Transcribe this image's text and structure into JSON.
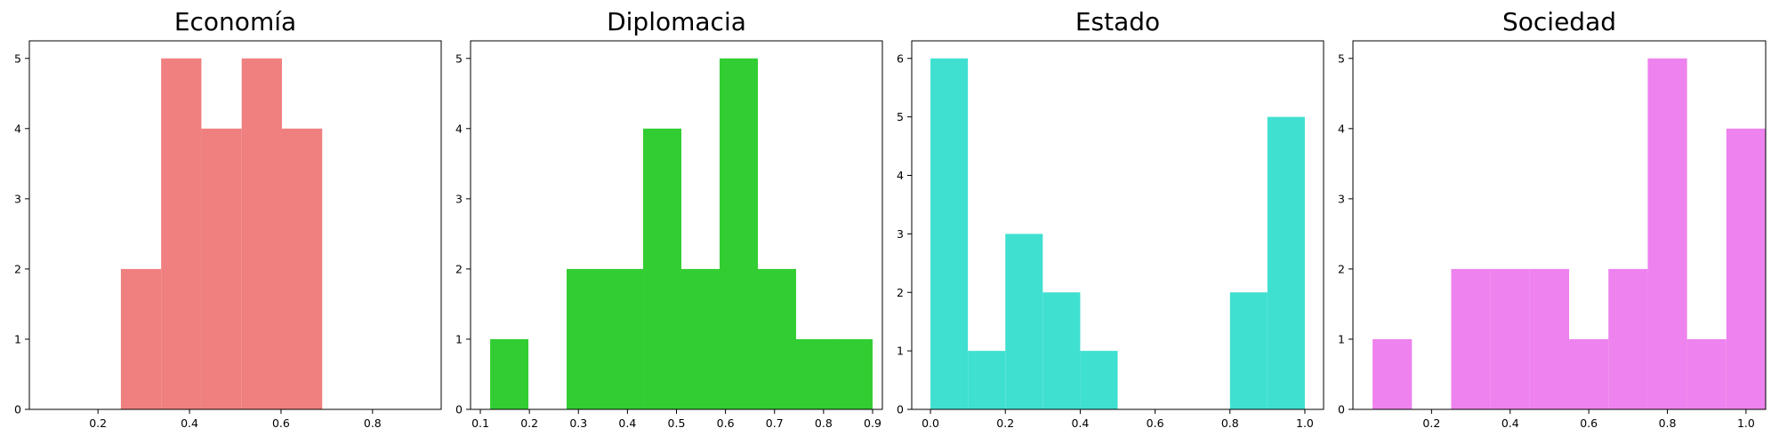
{
  "chart_data": [
    {
      "type": "histogram",
      "title": "Economía",
      "color": "#F08080",
      "xlim": [
        0.05,
        0.95
      ],
      "ylim": [
        0,
        5.25
      ],
      "xticks": [
        0.2,
        0.4,
        0.6,
        0.8
      ],
      "xtick_labels": [
        "0.2",
        "0.4",
        "0.6",
        "0.8"
      ],
      "yticks": [
        0,
        1,
        2,
        3,
        4,
        5
      ],
      "bins": [
        {
          "x0": 0.25,
          "x1": 0.338,
          "count": 2
        },
        {
          "x0": 0.338,
          "x1": 0.426,
          "count": 5
        },
        {
          "x0": 0.426,
          "x1": 0.514,
          "count": 4
        },
        {
          "x0": 0.514,
          "x1": 0.602,
          "count": 5
        },
        {
          "x0": 0.602,
          "x1": 0.69,
          "count": 4
        }
      ]
    },
    {
      "type": "histogram",
      "title": "Diplomacia",
      "color": "#32CD32",
      "xlim": [
        0.08,
        0.92
      ],
      "ylim": [
        0,
        5.25
      ],
      "xticks": [
        0.1,
        0.2,
        0.3,
        0.4,
        0.5,
        0.6,
        0.7,
        0.8,
        0.9
      ],
      "xtick_labels": [
        "0.1",
        "0.2",
        "0.3",
        "0.4",
        "0.5",
        "0.6",
        "0.7",
        "0.8",
        "0.9"
      ],
      "yticks": [
        0,
        1,
        2,
        3,
        4,
        5
      ],
      "bins": [
        {
          "x0": 0.12,
          "x1": 0.198,
          "count": 1
        },
        {
          "x0": 0.198,
          "x1": 0.276,
          "count": 0
        },
        {
          "x0": 0.276,
          "x1": 0.354,
          "count": 2
        },
        {
          "x0": 0.354,
          "x1": 0.432,
          "count": 2
        },
        {
          "x0": 0.432,
          "x1": 0.51,
          "count": 4
        },
        {
          "x0": 0.51,
          "x1": 0.588,
          "count": 2
        },
        {
          "x0": 0.588,
          "x1": 0.666,
          "count": 5
        },
        {
          "x0": 0.666,
          "x1": 0.744,
          "count": 2
        },
        {
          "x0": 0.744,
          "x1": 0.822,
          "count": 1
        },
        {
          "x0": 0.822,
          "x1": 0.9,
          "count": 1
        }
      ]
    },
    {
      "type": "histogram",
      "title": "Estado",
      "color": "#40E0D0",
      "xlim": [
        -0.05,
        1.05
      ],
      "ylim": [
        0,
        6.3
      ],
      "xticks": [
        0.0,
        0.2,
        0.4,
        0.6,
        0.8,
        1.0
      ],
      "xtick_labels": [
        "0.0",
        "0.2",
        "0.4",
        "0.6",
        "0.8",
        "1.0"
      ],
      "yticks": [
        0,
        1,
        2,
        3,
        4,
        5,
        6
      ],
      "bins": [
        {
          "x0": 0.0,
          "x1": 0.1,
          "count": 6
        },
        {
          "x0": 0.1,
          "x1": 0.2,
          "count": 1
        },
        {
          "x0": 0.2,
          "x1": 0.3,
          "count": 3
        },
        {
          "x0": 0.3,
          "x1": 0.4,
          "count": 2
        },
        {
          "x0": 0.4,
          "x1": 0.5,
          "count": 1
        },
        {
          "x0": 0.5,
          "x1": 0.6,
          "count": 0
        },
        {
          "x0": 0.6,
          "x1": 0.7,
          "count": 0
        },
        {
          "x0": 0.7,
          "x1": 0.8,
          "count": 0
        },
        {
          "x0": 0.8,
          "x1": 0.9,
          "count": 2
        },
        {
          "x0": 0.9,
          "x1": 1.0,
          "count": 5
        }
      ]
    },
    {
      "type": "histogram",
      "title": "Sociedad",
      "color": "#EE82EE",
      "xlim": [
        0.0,
        1.05
      ],
      "ylim": [
        0,
        5.25
      ],
      "xticks": [
        0.2,
        0.4,
        0.6,
        0.8,
        1.0
      ],
      "xtick_labels": [
        "0.2",
        "0.4",
        "0.6",
        "0.8",
        "1.0"
      ],
      "yticks": [
        0,
        1,
        2,
        3,
        4,
        5
      ],
      "bins": [
        {
          "x0": 0.05,
          "x1": 0.15,
          "count": 1
        },
        {
          "x0": 0.15,
          "x1": 0.25,
          "count": 0
        },
        {
          "x0": 0.25,
          "x1": 0.35,
          "count": 2
        },
        {
          "x0": 0.35,
          "x1": 0.45,
          "count": 2
        },
        {
          "x0": 0.45,
          "x1": 0.55,
          "count": 2
        },
        {
          "x0": 0.55,
          "x1": 0.65,
          "count": 1
        },
        {
          "x0": 0.65,
          "x1": 0.75,
          "count": 2
        },
        {
          "x0": 0.75,
          "x1": 0.85,
          "count": 5
        },
        {
          "x0": 0.85,
          "x1": 0.95,
          "count": 1
        },
        {
          "x0": 0.95,
          "x1": 1.05,
          "count": 4
        }
      ]
    }
  ]
}
